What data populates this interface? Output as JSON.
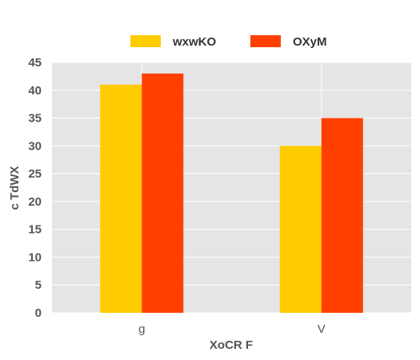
{
  "chart_data": {
    "type": "bar",
    "categories": [
      "g",
      "V"
    ],
    "series": [
      {
        "name": "wxwKO",
        "values": [
          41,
          30
        ],
        "color": "#FFCC00"
      },
      {
        "name": "OXyM",
        "values": [
          43,
          35
        ],
        "color": "#FF4000"
      }
    ],
    "xlabel": "XoCR F",
    "ylabel": "c TdWX",
    "ylim": [
      0,
      45
    ],
    "yticks": [
      0,
      5,
      10,
      15,
      20,
      25,
      30,
      35,
      40,
      45
    ],
    "grid": true,
    "legend_position": "top-center",
    "background_color": "#E5E5E5",
    "grid_color": "#FFFFFF"
  }
}
